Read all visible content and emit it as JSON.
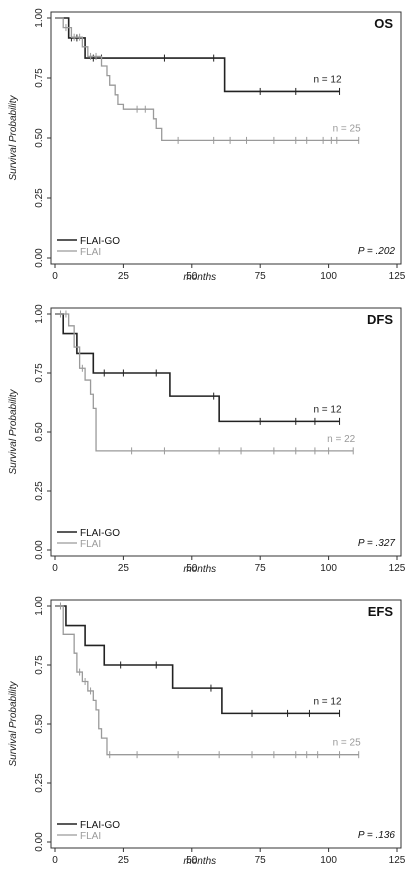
{
  "colors": {
    "flai_go": "#222222",
    "flai": "#9a9a9a",
    "axis": "#333333"
  },
  "chart_data": [
    {
      "type": "line",
      "title": "OS",
      "xlabel": "months",
      "ylabel": "Survival Probability",
      "xlim": [
        0,
        125
      ],
      "ylim": [
        0,
        1
      ],
      "xticks": [
        "0",
        "25",
        "50",
        "75",
        "100",
        "125"
      ],
      "yticks": [
        "0.00",
        "0.25",
        "0.50",
        "0.75",
        "1.00"
      ],
      "grid": false,
      "legend_position": "bottom-left",
      "p_value": "P = .202",
      "series": [
        {
          "name": "FLAI-GO",
          "n_label": "n = 12",
          "color": "#222222",
          "steps": [
            [
              0,
              1.0
            ],
            [
              5,
              0.917
            ],
            [
              11,
              0.833
            ],
            [
              62,
              0.694
            ],
            [
              104,
              0.694
            ]
          ],
          "censor": [
            6,
            8,
            14,
            17,
            40,
            58,
            75,
            88,
            104
          ]
        },
        {
          "name": "FLAI",
          "n_label": "n = 25",
          "color": "#9a9a9a",
          "steps": [
            [
              0,
              1.0
            ],
            [
              3,
              0.96
            ],
            [
              6,
              0.92
            ],
            [
              10,
              0.88
            ],
            [
              12,
              0.84
            ],
            [
              17,
              0.8
            ],
            [
              19,
              0.76
            ],
            [
              20,
              0.72
            ],
            [
              22,
              0.68
            ],
            [
              23,
              0.64
            ],
            [
              25,
              0.62
            ],
            [
              36,
              0.58
            ],
            [
              37,
              0.54
            ],
            [
              39,
              0.49
            ],
            [
              111,
              0.49
            ]
          ],
          "censor": [
            4,
            7,
            9,
            13,
            15,
            30,
            33,
            45,
            58,
            64,
            70,
            80,
            88,
            92,
            98,
            101,
            103,
            111
          ]
        }
      ]
    },
    {
      "type": "line",
      "title": "DFS",
      "xlabel": "months",
      "ylabel": "Survival Probability",
      "xlim": [
        0,
        125
      ],
      "ylim": [
        0,
        1
      ],
      "xticks": [
        "0",
        "25",
        "50",
        "75",
        "100",
        "125"
      ],
      "yticks": [
        "0.00",
        "0.25",
        "0.50",
        "0.75",
        "1.00"
      ],
      "grid": false,
      "legend_position": "bottom-left",
      "p_value": "P = .327",
      "series": [
        {
          "name": "FLAI-GO",
          "n_label": "n = 12",
          "color": "#222222",
          "steps": [
            [
              0,
              1.0
            ],
            [
              3,
              0.917
            ],
            [
              8,
              0.833
            ],
            [
              14,
              0.75
            ],
            [
              42,
              0.652
            ],
            [
              60,
              0.545
            ],
            [
              104,
              0.545
            ]
          ],
          "censor": [
            18,
            25,
            37,
            58,
            75,
            88,
            95,
            104
          ]
        },
        {
          "name": "FLAI",
          "n_label": "n = 22",
          "color": "#9a9a9a",
          "steps": [
            [
              0,
              1.0
            ],
            [
              5,
              0.95
            ],
            [
              7,
              0.86
            ],
            [
              9,
              0.77
            ],
            [
              11,
              0.72
            ],
            [
              13,
              0.66
            ],
            [
              14,
              0.6
            ],
            [
              15,
              0.42
            ],
            [
              109,
              0.42
            ]
          ],
          "censor": [
            2,
            4,
            10,
            28,
            40,
            60,
            68,
            80,
            88,
            95,
            100,
            109
          ]
        }
      ]
    },
    {
      "type": "line",
      "title": "EFS",
      "xlabel": "months",
      "ylabel": "Survival Probability",
      "xlim": [
        0,
        125
      ],
      "ylim": [
        0,
        1
      ],
      "xticks": [
        "0",
        "25",
        "50",
        "75",
        "100",
        "125"
      ],
      "yticks": [
        "0.00",
        "0.25",
        "0.50",
        "0.75",
        "1.00"
      ],
      "grid": false,
      "legend_position": "bottom-left",
      "p_value": "P = .136",
      "series": [
        {
          "name": "FLAI-GO",
          "n_label": "n = 12",
          "color": "#222222",
          "steps": [
            [
              0,
              1.0
            ],
            [
              4,
              0.917
            ],
            [
              11,
              0.833
            ],
            [
              18,
              0.75
            ],
            [
              43,
              0.652
            ],
            [
              61,
              0.545
            ],
            [
              104,
              0.545
            ]
          ],
          "censor": [
            24,
            37,
            57,
            72,
            85,
            93,
            104
          ]
        },
        {
          "name": "FLAI",
          "n_label": "n = 25",
          "color": "#9a9a9a",
          "steps": [
            [
              0,
              1.0
            ],
            [
              3,
              0.88
            ],
            [
              7,
              0.8
            ],
            [
              8,
              0.72
            ],
            [
              10,
              0.68
            ],
            [
              12,
              0.64
            ],
            [
              14,
              0.6
            ],
            [
              15,
              0.56
            ],
            [
              16,
              0.48
            ],
            [
              17,
              0.44
            ],
            [
              19,
              0.37
            ],
            [
              111,
              0.37
            ]
          ],
          "censor": [
            2,
            9,
            11,
            13,
            20,
            30,
            45,
            60,
            72,
            80,
            88,
            92,
            96,
            104,
            111
          ]
        }
      ]
    }
  ]
}
